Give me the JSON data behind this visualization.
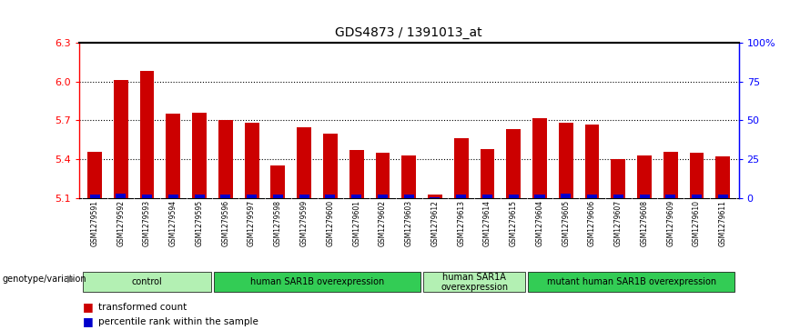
{
  "title": "GDS4873 / 1391013_at",
  "samples": [
    "GSM1279591",
    "GSM1279592",
    "GSM1279593",
    "GSM1279594",
    "GSM1279595",
    "GSM1279596",
    "GSM1279597",
    "GSM1279598",
    "GSM1279599",
    "GSM1279600",
    "GSM1279601",
    "GSM1279602",
    "GSM1279603",
    "GSM1279612",
    "GSM1279613",
    "GSM1279614",
    "GSM1279615",
    "GSM1279604",
    "GSM1279605",
    "GSM1279606",
    "GSM1279607",
    "GSM1279608",
    "GSM1279609",
    "GSM1279610",
    "GSM1279611"
  ],
  "red_values": [
    5.46,
    6.01,
    6.08,
    5.75,
    5.76,
    5.7,
    5.68,
    5.35,
    5.65,
    5.6,
    5.47,
    5.45,
    5.43,
    5.13,
    5.56,
    5.48,
    5.63,
    5.72,
    5.68,
    5.67,
    5.4,
    5.43,
    5.46,
    5.45,
    5.42
  ],
  "blue_percentiles": [
    14,
    18,
    16,
    14,
    15,
    15,
    15,
    15,
    15,
    15,
    15,
    15,
    15,
    5,
    15,
    14,
    15,
    15,
    18,
    15,
    14,
    14,
    14,
    15,
    14
  ],
  "groups": [
    {
      "label": "control",
      "start": 0,
      "end": 4,
      "color": "#b3f0b3"
    },
    {
      "label": "human SAR1B overexpression",
      "start": 5,
      "end": 12,
      "color": "#33cc55"
    },
    {
      "label": "human SAR1A\noverexpression",
      "start": 13,
      "end": 16,
      "color": "#b3f0b3"
    },
    {
      "label": "mutant human SAR1B overexpression",
      "start": 17,
      "end": 24,
      "color": "#33cc55"
    }
  ],
  "ymin": 5.1,
  "ymax": 6.3,
  "yticks": [
    5.1,
    5.4,
    5.7,
    6.0,
    6.3
  ],
  "right_yticks": [
    0,
    25,
    50,
    75,
    100
  ],
  "right_ylabels": [
    "0",
    "25",
    "50",
    "75",
    "100%"
  ],
  "bar_color_red": "#CC0000",
  "bar_color_blue": "#0000CC",
  "bg_color": "#FFFFFF",
  "plot_bg_color": "#FFFFFF",
  "tick_area_color": "#D3D3D3",
  "genotype_label": "genotype/variation",
  "legend_red": "transformed count",
  "legend_blue": "percentile rank within the sample"
}
